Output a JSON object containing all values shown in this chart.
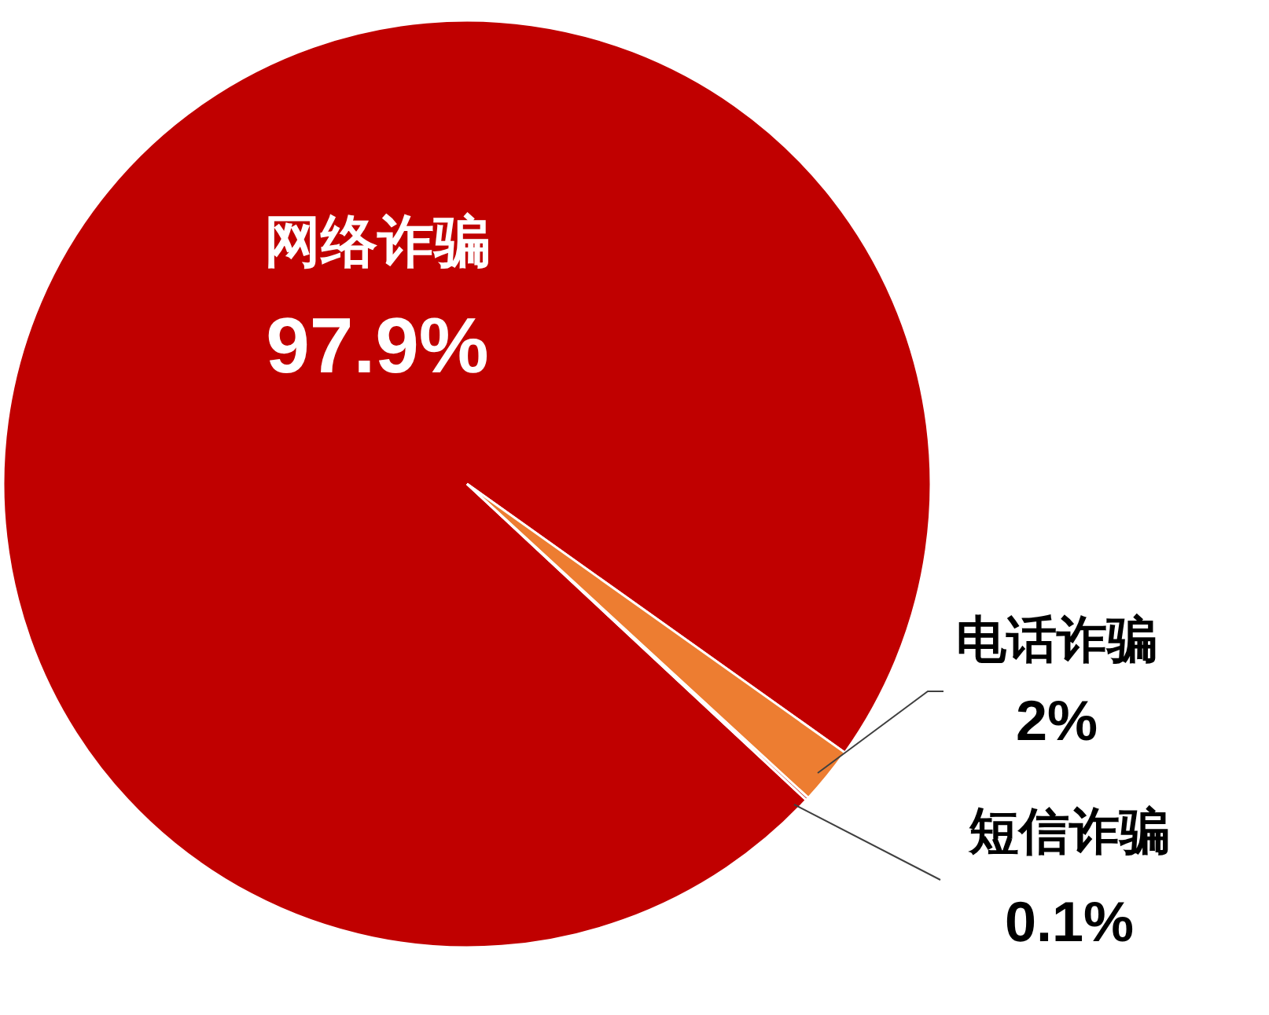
{
  "chart_data": {
    "type": "pie",
    "categories": [
      "网络诈骗",
      "电话诈骗",
      "短信诈骗"
    ],
    "values": [
      97.9,
      2,
      0.1
    ],
    "colors": [
      "#c00000",
      "#ed7d31",
      "#c00000"
    ],
    "value_labels": [
      "97.9%",
      "2%",
      "0.1%"
    ]
  }
}
